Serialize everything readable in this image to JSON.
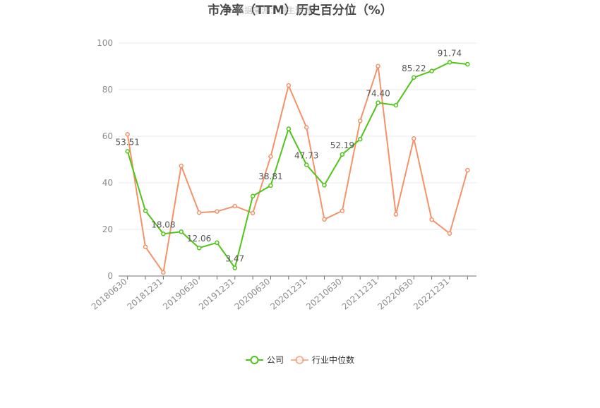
{
  "chart_data": {
    "type": "line",
    "title": "市净率（TTM）历史百分位（%）",
    "watermark": "数据来源：恒生聚源",
    "xlabel": "",
    "ylabel": "",
    "ylim": [
      0,
      100
    ],
    "yticks": [
      0,
      20,
      40,
      60,
      80,
      100
    ],
    "grid": true,
    "legend_position": "bottom-center",
    "x": [
      "20180630",
      "20180930",
      "20181231",
      "20190331",
      "20190630",
      "20190930",
      "20191231",
      "20200331",
      "20200630",
      "20200930",
      "20201231",
      "20210331",
      "20210630",
      "20210930",
      "20211231",
      "20220331",
      "20220630",
      "20220930",
      "20221231",
      "20230331"
    ],
    "x_tick_labels": [
      "20180630",
      "20181231",
      "20190630",
      "20191231",
      "20200630",
      "20201231",
      "20210630",
      "20211231",
      "20220630",
      "20221231"
    ],
    "series": [
      {
        "name": "公司",
        "color": "#52c41a",
        "values": [
          53.51,
          28.0,
          18.08,
          19.0,
          12.06,
          14.3,
          3.47,
          34.3,
          38.81,
          63.2,
          47.73,
          39.0,
          52.19,
          58.7,
          74.4,
          73.3,
          85.22,
          88.0,
          91.74,
          90.9
        ],
        "labels": [
          "53.51",
          "",
          "18.08",
          "",
          "12.06",
          "",
          "3.47",
          "",
          "38.81",
          "",
          "47.73",
          "",
          "52.19",
          "",
          "74.40",
          "",
          "85.22",
          "",
          "91.74",
          ""
        ]
      },
      {
        "name": "行业中位数",
        "color": "#f4936a",
        "values": [
          60.8,
          12.5,
          1.5,
          47.3,
          27.2,
          27.7,
          30.0,
          27.0,
          51.3,
          81.8,
          63.8,
          24.3,
          28.0,
          66.6,
          90.1,
          26.5,
          59.0,
          24.2,
          18.3,
          45.4
        ]
      }
    ]
  }
}
